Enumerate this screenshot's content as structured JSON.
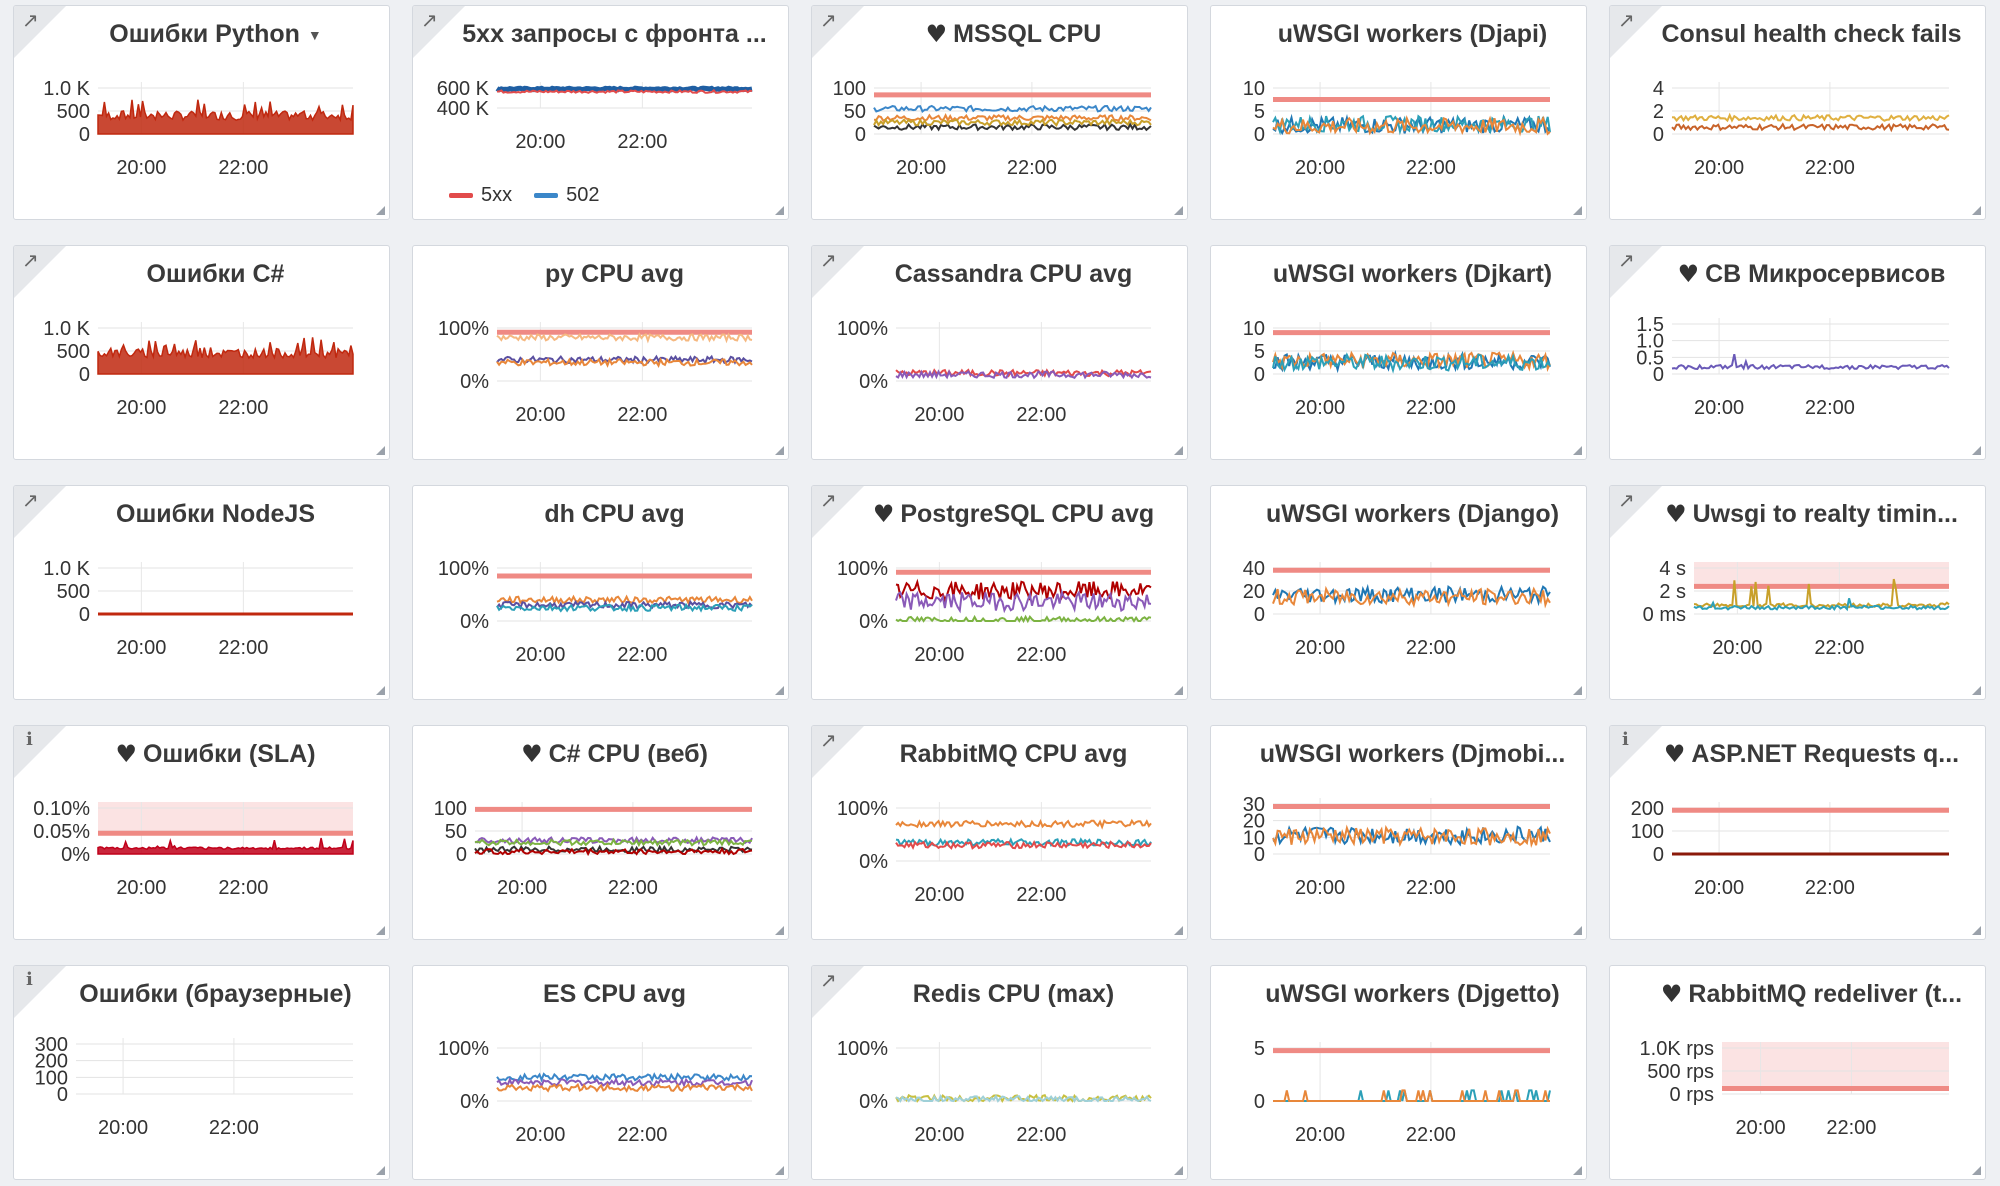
{
  "panels": [
    {
      "title": "Ошибки Python",
      "icon": "external-link-icon",
      "caret": true,
      "heart": false,
      "yticks": [
        "1.0 K",
        "500",
        "0"
      ],
      "xticks": [
        "20:00",
        "22:00"
      ],
      "threshold": null,
      "band": false,
      "series": [
        {
          "color": "#c0280f",
          "style": "area-spiky",
          "level": 0.3
        }
      ]
    },
    {
      "title": "5xx запросы с фронта ...",
      "icon": "external-link-icon",
      "caret": false,
      "heart": false,
      "yticks": [
        "600 K",
        "400 K"
      ],
      "xticks": [
        "20:00",
        "22:00"
      ],
      "threshold": null,
      "band": false,
      "legend": [
        {
          "name": "5xx",
          "color": "#e24b4b"
        },
        {
          "name": "502",
          "color": "#3b87c9"
        }
      ],
      "series": [
        {
          "color": "#1f5fa3",
          "style": "thick",
          "level": 0.95
        },
        {
          "color": "#e24b4b",
          "style": "line",
          "level": 0.82
        }
      ]
    },
    {
      "title": "MSSQL CPU",
      "icon": "external-link-icon",
      "caret": false,
      "heart": true,
      "yticks": [
        "100",
        "50",
        "0"
      ],
      "xticks": [
        "20:00",
        "22:00"
      ],
      "threshold": 0.85,
      "band": false,
      "series": [
        {
          "color": "#3b87c9",
          "style": "line",
          "level": 0.55
        },
        {
          "color": "#e8873a",
          "style": "line",
          "level": 0.35
        },
        {
          "color": "#333333",
          "style": "line",
          "level": 0.15
        },
        {
          "color": "#c8a02a",
          "style": "line",
          "level": 0.25
        }
      ]
    },
    {
      "title": "uWSGI workers (Djapi)",
      "icon": "none",
      "caret": false,
      "heart": false,
      "yticks": [
        "10",
        "5",
        "0"
      ],
      "xticks": [
        "20:00",
        "22:00"
      ],
      "threshold": 0.75,
      "band": false,
      "series": [
        {
          "color": "#1f77b4",
          "style": "noisy",
          "level": 0.12
        },
        {
          "color": "#2ca0b8",
          "style": "noisy",
          "level": 0.15
        },
        {
          "color": "#e8873a",
          "style": "noisy",
          "level": 0.1
        }
      ]
    },
    {
      "title": "Consul health check fails",
      "icon": "external-link-icon",
      "caret": false,
      "heart": false,
      "yticks": [
        "4",
        "2",
        "0"
      ],
      "xticks": [
        "20:00",
        "22:00"
      ],
      "threshold": null,
      "band": false,
      "series": [
        {
          "color": "#e0b040",
          "style": "line",
          "level": 0.35
        },
        {
          "color": "#c8632a",
          "style": "line",
          "level": 0.15
        }
      ]
    },
    {
      "title": "Ошибки C#",
      "icon": "external-link-icon",
      "caret": false,
      "heart": false,
      "yticks": [
        "1.0 K",
        "500",
        "0"
      ],
      "xticks": [
        "20:00",
        "22:00"
      ],
      "threshold": null,
      "band": false,
      "series": [
        {
          "color": "#c0280f",
          "style": "area-spiky",
          "level": 0.35
        }
      ]
    },
    {
      "title": "py CPU avg",
      "icon": "none",
      "caret": false,
      "heart": false,
      "yticks": [
        "100%",
        "0%"
      ],
      "xticks": [
        "20:00",
        "22:00"
      ],
      "threshold": 0.92,
      "band": false,
      "series": [
        {
          "color": "#f5b880",
          "style": "line",
          "level": 0.82
        },
        {
          "color": "#5a4fa0",
          "style": "line",
          "level": 0.4
        },
        {
          "color": "#e8873a",
          "style": "line",
          "level": 0.35
        }
      ]
    },
    {
      "title": "Cassandra CPU avg",
      "icon": "external-link-icon",
      "caret": false,
      "heart": false,
      "yticks": [
        "100%",
        "0%"
      ],
      "xticks": [
        "20:00",
        "22:00"
      ],
      "threshold": null,
      "band": false,
      "series": [
        {
          "color": "#e24b4b",
          "style": "line",
          "level": 0.15
        },
        {
          "color": "#8a5ab8",
          "style": "line",
          "level": 0.12
        }
      ]
    },
    {
      "title": "uWSGI workers (Djkart)",
      "icon": "none",
      "caret": false,
      "heart": false,
      "yticks": [
        "10",
        "5",
        "0"
      ],
      "xticks": [
        "20:00",
        "22:00"
      ],
      "threshold": 0.9,
      "band": false,
      "series": [
        {
          "color": "#1f77b4",
          "style": "noisy",
          "level": 0.2
        },
        {
          "color": "#e8873a",
          "style": "noisy",
          "level": 0.22
        },
        {
          "color": "#2ca0b8",
          "style": "noisy",
          "level": 0.18
        }
      ]
    },
    {
      "title": "СВ Микросервисов",
      "icon": "external-link-icon",
      "caret": false,
      "heart": true,
      "yticks": [
        "1.5",
        "1.0",
        "0.5",
        "0"
      ],
      "xticks": [
        "20:00",
        "22:00"
      ],
      "threshold": null,
      "band": false,
      "series": [
        {
          "color": "#6a5ab8",
          "style": "spiky-line",
          "level": 0.1
        }
      ]
    },
    {
      "title": "Ошибки NodeJS",
      "icon": "external-link-icon",
      "caret": false,
      "heart": false,
      "yticks": [
        "1.0 K",
        "500",
        "0"
      ],
      "xticks": [
        "20:00",
        "22:00"
      ],
      "threshold": null,
      "band": false,
      "series": [
        {
          "color": "#c0280f",
          "style": "flat",
          "level": 0.0
        }
      ]
    },
    {
      "title": "dh CPU avg",
      "icon": "none",
      "caret": false,
      "heart": false,
      "yticks": [
        "100%",
        "0%"
      ],
      "xticks": [
        "20:00",
        "22:00"
      ],
      "threshold": 0.85,
      "band": false,
      "series": [
        {
          "color": "#e8873a",
          "style": "line",
          "level": 0.4
        },
        {
          "color": "#5a4fa0",
          "style": "line",
          "level": 0.3
        },
        {
          "color": "#2ca0b8",
          "style": "line",
          "level": 0.25
        }
      ]
    },
    {
      "title": "PostgreSQL CPU avg",
      "icon": "external-link-icon",
      "caret": false,
      "heart": true,
      "yticks": [
        "100%",
        "0%"
      ],
      "xticks": [
        "20:00",
        "22:00"
      ],
      "threshold": 0.92,
      "band": false,
      "series": [
        {
          "color": "#b00000",
          "style": "noisy",
          "level": 0.5
        },
        {
          "color": "#8a5ab8",
          "style": "noisy",
          "level": 0.3
        },
        {
          "color": "#7cb342",
          "style": "line",
          "level": 0.02
        }
      ]
    },
    {
      "title": "uWSGI workers (Django)",
      "icon": "none",
      "caret": false,
      "heart": false,
      "yticks": [
        "40",
        "20",
        "0"
      ],
      "xticks": [
        "20:00",
        "22:00"
      ],
      "threshold": 0.95,
      "band": false,
      "series": [
        {
          "color": "#1f77b4",
          "style": "noisy",
          "level": 0.35
        },
        {
          "color": "#e8873a",
          "style": "noisy",
          "level": 0.3
        }
      ]
    },
    {
      "title": "Uwsgi to realty timin...",
      "icon": "external-link-icon",
      "caret": false,
      "heart": true,
      "yticks": [
        "4 s",
        "2 s",
        "0 ms"
      ],
      "xticks": [
        "20:00",
        "22:00"
      ],
      "threshold": 0.6,
      "band": true,
      "series": [
        {
          "color": "#c8a02a",
          "style": "spiky-line",
          "level": 0.15
        },
        {
          "color": "#2ca0b8",
          "style": "spiky-line",
          "level": 0.1
        }
      ]
    },
    {
      "title": "Ошибки (SLA)",
      "icon": "info-icon",
      "caret": false,
      "heart": true,
      "yticks": [
        "0.10%",
        "0.05%",
        "0%"
      ],
      "xticks": [
        "20:00",
        "22:00"
      ],
      "threshold": 0.45,
      "band": true,
      "series": [
        {
          "color": "#c0001a",
          "style": "area-low",
          "level": 0.1
        }
      ]
    },
    {
      "title": "C# CPU (веб)",
      "icon": "none",
      "caret": false,
      "heart": true,
      "yticks": [
        "100",
        "50",
        "0"
      ],
      "xticks": [
        "20:00",
        "22:00"
      ],
      "threshold": 0.97,
      "band": false,
      "series": [
        {
          "color": "#8a5ab8",
          "style": "line",
          "level": 0.3
        },
        {
          "color": "#7cb342",
          "style": "line",
          "level": 0.25
        },
        {
          "color": "#333333",
          "style": "line",
          "level": 0.1
        },
        {
          "color": "#b00000",
          "style": "line",
          "level": 0.05
        }
      ]
    },
    {
      "title": "RabbitMQ CPU avg",
      "icon": "external-link-icon",
      "caret": false,
      "heart": false,
      "yticks": [
        "100%",
        "0%"
      ],
      "xticks": [
        "20:00",
        "22:00"
      ],
      "threshold": null,
      "band": false,
      "series": [
        {
          "color": "#e8873a",
          "style": "line",
          "level": 0.7
        },
        {
          "color": "#2ca0b8",
          "style": "line",
          "level": 0.35
        },
        {
          "color": "#e24b4b",
          "style": "line",
          "level": 0.3
        }
      ]
    },
    {
      "title": "uWSGI workers (Djmobi...",
      "icon": "none",
      "caret": false,
      "heart": false,
      "yticks": [
        "30",
        "20",
        "10",
        "0"
      ],
      "xticks": [
        "20:00",
        "22:00"
      ],
      "threshold": 0.95,
      "band": false,
      "series": [
        {
          "color": "#1f77b4",
          "style": "noisy",
          "level": 0.3
        },
        {
          "color": "#e8873a",
          "style": "noisy",
          "level": 0.28
        }
      ]
    },
    {
      "title": "ASP.NET Requests q...",
      "icon": "info-icon",
      "caret": false,
      "heart": true,
      "yticks": [
        "200",
        "100",
        "0"
      ],
      "xticks": [
        "20:00",
        "22:00"
      ],
      "threshold": 0.95,
      "band": false,
      "series": [
        {
          "color": "#8b1a0a",
          "style": "flat",
          "level": 0.0
        }
      ]
    },
    {
      "title": "Ошибки (браузерные)",
      "icon": "info-icon",
      "caret": false,
      "heart": false,
      "yticks": [
        "300",
        "200",
        "100",
        "0"
      ],
      "xticks": [
        "20:00",
        "22:00"
      ],
      "threshold": null,
      "band": false,
      "series": []
    },
    {
      "title": "ES CPU avg",
      "icon": "none",
      "caret": false,
      "heart": false,
      "yticks": [
        "100%",
        "0%"
      ],
      "xticks": [
        "20:00",
        "22:00"
      ],
      "threshold": null,
      "band": false,
      "series": [
        {
          "color": "#3b87c9",
          "style": "line",
          "level": 0.45
        },
        {
          "color": "#8a5ab8",
          "style": "line",
          "level": 0.35
        },
        {
          "color": "#e8873a",
          "style": "line",
          "level": 0.25
        }
      ]
    },
    {
      "title": "Redis CPU (max)",
      "icon": "external-link-icon",
      "caret": false,
      "heart": false,
      "yticks": [
        "100%",
        "0%"
      ],
      "xticks": [
        "20:00",
        "22:00"
      ],
      "threshold": null,
      "band": false,
      "series": [
        {
          "color": "#c8c040",
          "style": "line",
          "level": 0.05
        },
        {
          "color": "#9fd0d8",
          "style": "line",
          "level": 0.03
        }
      ]
    },
    {
      "title": "uWSGI workers (Djgetto)",
      "icon": "none",
      "caret": false,
      "heart": false,
      "yticks": [
        "5",
        "0"
      ],
      "xticks": [
        "20:00",
        "22:00"
      ],
      "threshold": 0.95,
      "band": false,
      "series": [
        {
          "color": "#2ca0b8",
          "style": "sparse",
          "level": 0.0
        },
        {
          "color": "#e8873a",
          "style": "sparse",
          "level": 0.0
        }
      ]
    },
    {
      "title": "RabbitMQ redeliver (t...",
      "icon": "none",
      "caret": false,
      "heart": true,
      "yticks": [
        "1.0K rps",
        "500 rps",
        "0 rps"
      ],
      "xticks": [
        "20:00",
        "22:00"
      ],
      "threshold": 0.12,
      "band": true,
      "series": []
    }
  ]
}
